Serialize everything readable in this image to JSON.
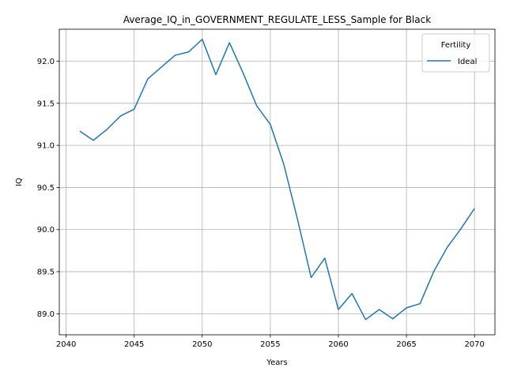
{
  "chart_data": {
    "type": "line",
    "title": "Average_IQ_in_GOVERNMENT_REGULATE_LESS_Sample for Black",
    "xlabel": "Years",
    "ylabel": "IQ",
    "xlim": [
      2039.5,
      2071.5
    ],
    "ylim": [
      88.75,
      92.38
    ],
    "xticks": [
      2040,
      2045,
      2050,
      2055,
      2060,
      2065,
      2070
    ],
    "yticks": [
      89.0,
      89.5,
      90.0,
      90.5,
      91.0,
      91.5,
      92.0
    ],
    "xtick_labels": [
      "2040",
      "2045",
      "2050",
      "2055",
      "2060",
      "2065",
      "2070"
    ],
    "ytick_labels": [
      "89.0",
      "89.5",
      "90.0",
      "90.5",
      "91.0",
      "91.5",
      "92.0"
    ],
    "grid": true,
    "legend": {
      "title": "Fertility",
      "position": "top-right"
    },
    "series": [
      {
        "name": "Ideal",
        "color": "#1f77b4",
        "x": [
          2041,
          2042,
          2043,
          2044,
          2045,
          2046,
          2047,
          2048,
          2049,
          2050,
          2051,
          2052,
          2053,
          2054,
          2055,
          2056,
          2057,
          2058,
          2059,
          2060,
          2061,
          2062,
          2063,
          2064,
          2065,
          2066,
          2067,
          2068,
          2069,
          2070
        ],
        "values": [
          91.17,
          91.06,
          91.19,
          91.35,
          91.43,
          91.79,
          91.93,
          92.07,
          92.11,
          92.26,
          91.84,
          92.22,
          91.86,
          91.47,
          91.25,
          90.77,
          90.12,
          89.43,
          89.66,
          89.05,
          89.24,
          88.93,
          89.05,
          88.94,
          89.07,
          89.12,
          89.5,
          89.79,
          90.01,
          90.25
        ]
      }
    ]
  }
}
